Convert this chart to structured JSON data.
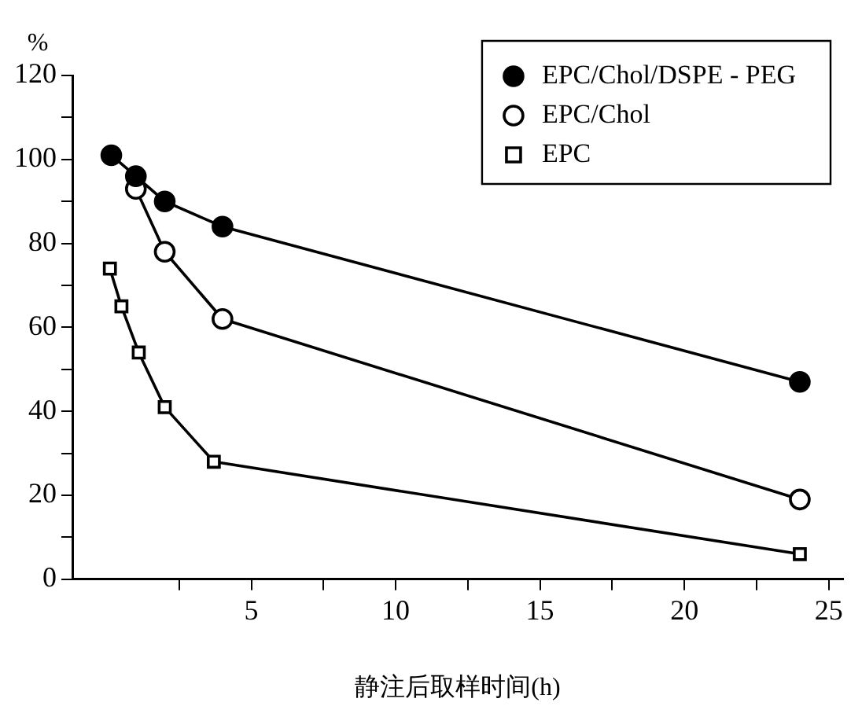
{
  "chart_data": {
    "type": "line",
    "xlabel": "静注后取样时间(h)",
    "ylabel": "%",
    "xlim": [
      -1.2,
      25.5
    ],
    "xticks": [
      {
        "value": 2.5,
        "label": null
      },
      5,
      {
        "value": 7.5,
        "label": null
      },
      10,
      {
        "value": 12.5,
        "label": null
      },
      15,
      {
        "value": 17.5,
        "label": null
      },
      20,
      {
        "value": 22.5,
        "label": null
      },
      25
    ],
    "ylim": [
      0,
      120
    ],
    "yticks": [
      0,
      {
        "value": 10,
        "label": null
      },
      20,
      {
        "value": 30,
        "label": null
      },
      40,
      {
        "value": 50,
        "label": null
      },
      60,
      {
        "value": 70,
        "label": null
      },
      80,
      {
        "value": 90,
        "label": null
      },
      100,
      {
        "value": 110,
        "label": null
      },
      120
    ],
    "grid": false,
    "legend": "top right",
    "line_style": "solid",
    "series": [
      {
        "name": "EPC/Chol/DSPE - PEG",
        "color": "#000000",
        "marker": "circle",
        "colors": [
          "#000000",
          "#000000",
          "#000000",
          "#000000",
          "#000000"
        ],
        "x": [
          0.15,
          1,
          2,
          4,
          24
        ],
        "values": [
          101,
          96,
          90,
          84,
          47
        ]
      },
      {
        "name": "EPC/Chol",
        "color": "#000000",
        "marker": "circle",
        "colors": [
          "#ffffff",
          "#ffffff",
          "#ffffff",
          "#ffffff"
        ],
        "x": [
          1,
          2,
          4,
          24
        ],
        "values": [
          93,
          78,
          62,
          19
        ]
      },
      {
        "name": "EPC",
        "color": "#000000",
        "marker": "square",
        "colors": [
          "#ffffff",
          "#ffffff",
          "#ffffff",
          "#ffffff",
          "#ffffff",
          "#ffffff"
        ],
        "x": [
          0.1,
          0.5,
          1.1,
          2,
          3.7,
          24
        ],
        "values": [
          74,
          65,
          54,
          41,
          28,
          6
        ]
      }
    ]
  }
}
